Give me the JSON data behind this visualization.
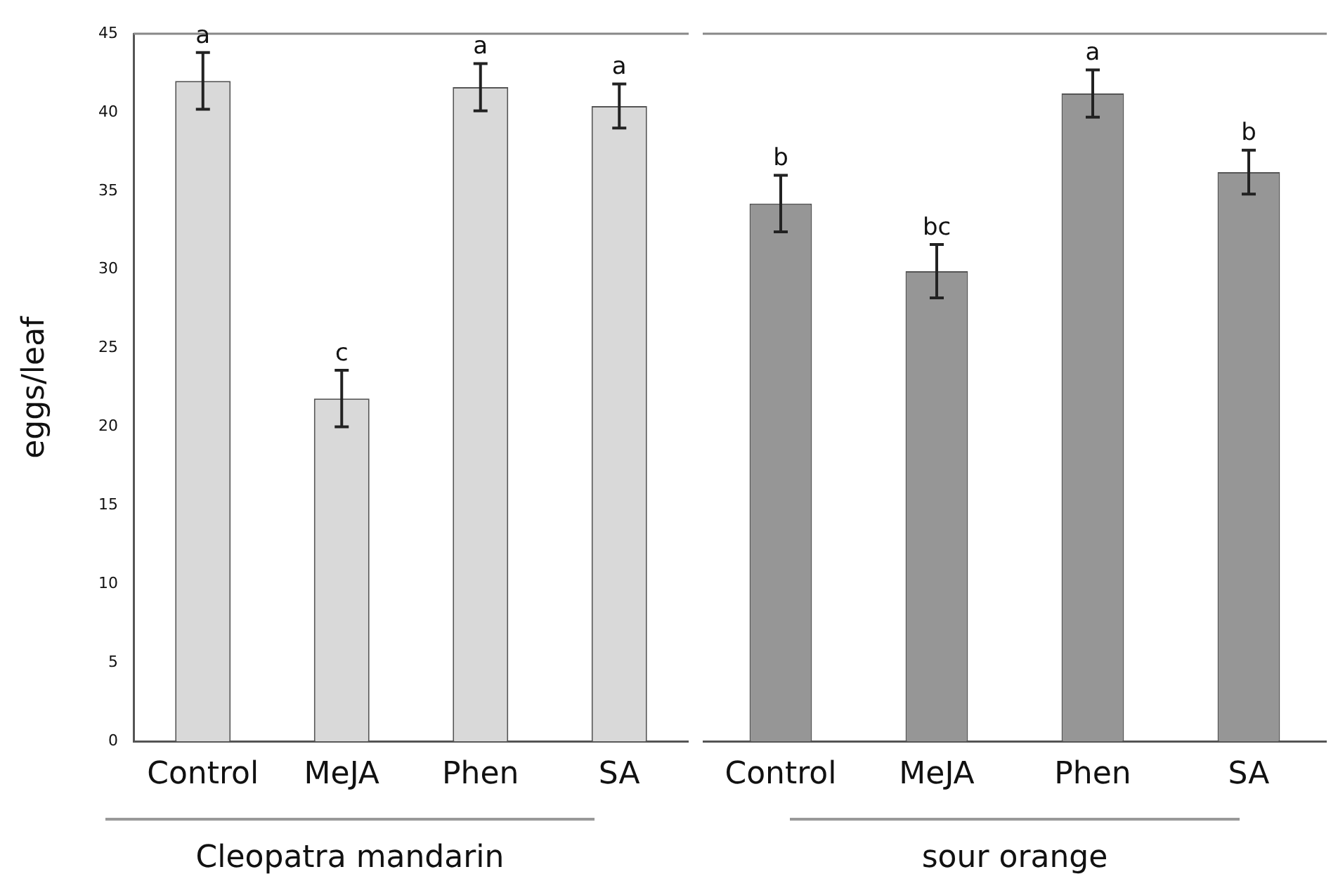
{
  "chart_data": [
    {
      "type": "bar",
      "categories": [
        "Control",
        "MeJA",
        "Phen",
        "SA"
      ],
      "xlabel": "Cleopatra mandarin",
      "ylabel": "eggs/leaf",
      "color": "#d9d9d9",
      "values": [
        42,
        21.8,
        41.6,
        40.4
      ],
      "errors": [
        1.8,
        1.8,
        1.5,
        1.4
      ],
      "ylim": [
        0,
        45
      ],
      "yticks": [
        0,
        5,
        10,
        15,
        20,
        25,
        30,
        35,
        40,
        45
      ],
      "grid": false,
      "annotations": [
        {
          "text": "a",
          "x": "Control",
          "y": 43.8
        },
        {
          "text": "c",
          "x": "MeJA",
          "y": 23.6
        },
        {
          "text": "a",
          "x": "Phen",
          "y": 43.1
        },
        {
          "text": "a",
          "x": "SA",
          "y": 41.8
        }
      ]
    },
    {
      "type": "bar",
      "categories": [
        "Control",
        "MeJA",
        "Phen",
        "SA"
      ],
      "xlabel": "sour orange",
      "color": "#969696",
      "values": [
        34.2,
        29.9,
        41.2,
        36.2
      ],
      "errors": [
        1.8,
        1.7,
        1.5,
        1.4
      ],
      "ylim": [
        0,
        45
      ],
      "yticks": [
        0,
        5,
        10,
        15,
        20,
        25,
        30,
        35,
        40,
        45
      ],
      "grid": false,
      "tick_labels": "x",
      "annotations": [
        {
          "text": "b",
          "x": "Control",
          "y": 36
        },
        {
          "text": "bc",
          "x": "MeJA",
          "y": 31.6
        },
        {
          "text": "a",
          "x": "Phen",
          "y": 42.7
        },
        {
          "text": "b",
          "x": "SA",
          "y": 37.6
        }
      ]
    }
  ]
}
